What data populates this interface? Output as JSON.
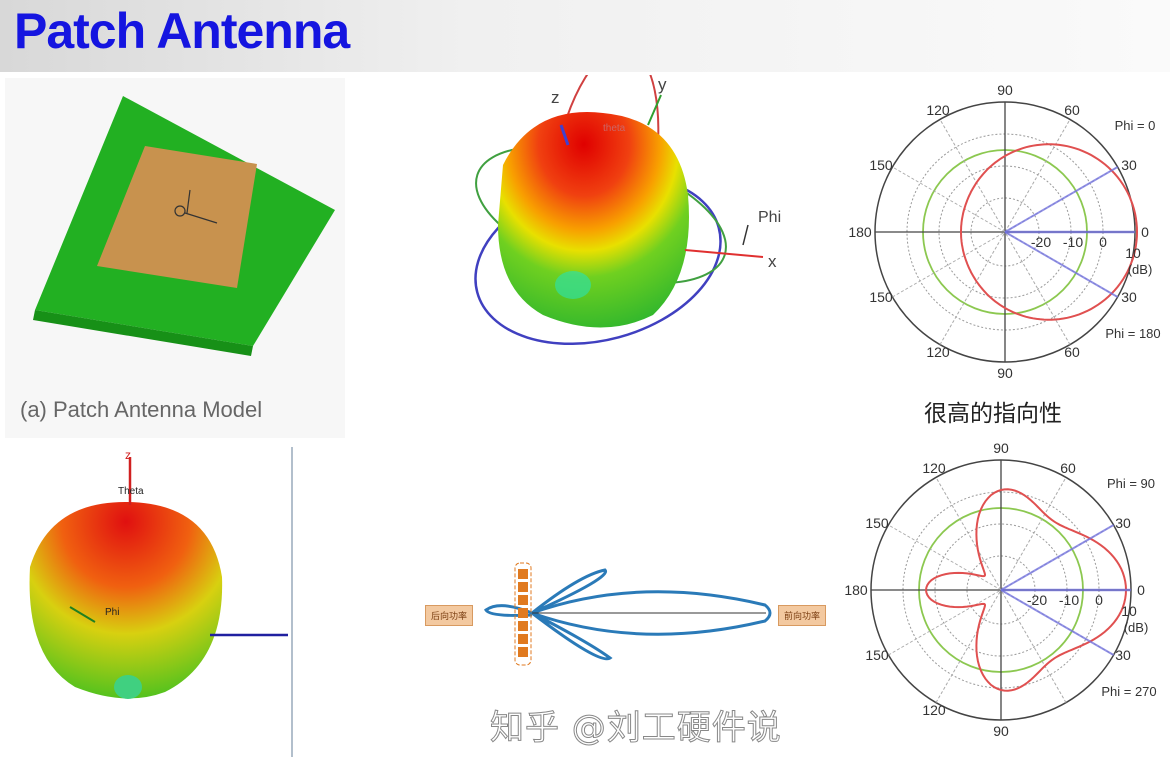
{
  "title": "Patch Antenna",
  "patch_model": {
    "caption": "(a) Patch Antenna Model"
  },
  "pattern_3d_top": {
    "axis_z": "z",
    "axis_y": "y",
    "axis_x": "x",
    "theta_label": "theta",
    "phi_label": "Phi"
  },
  "polar_top": {
    "angle_labels": [
      "90",
      "60",
      "30",
      "0",
      "30",
      "60",
      "90",
      "120",
      "150",
      "180",
      "150",
      "120"
    ],
    "db_labels": [
      "-20",
      "-10",
      "0",
      "10"
    ],
    "unit": "(dB)",
    "phi_start": "Phi = 0",
    "phi_end": "Phi = 180"
  },
  "polar_top_caption": "很高的指向性",
  "pattern_3d_bottom": {
    "axis_z": "z",
    "theta_label": "Theta",
    "phi_label": "Phi"
  },
  "array_diagram": {
    "back_label": "后向功率",
    "front_label": "前向功率"
  },
  "polar_bottom": {
    "angle_labels": [
      "90",
      "60",
      "30",
      "0",
      "30",
      "90",
      "120",
      "150",
      "180",
      "150",
      "120"
    ],
    "db_labels": [
      "-20",
      "-10",
      "0",
      "10"
    ],
    "unit": "(dB)",
    "phi_start": "Phi = 90",
    "phi_end": "Phi = 270"
  },
  "watermark": "知乎 @刘工硬件说",
  "colors": {
    "title": "#1515e0",
    "pattern": "#e04848",
    "reference": "#88c040",
    "beam": "#6a6ad8",
    "array_lobe": "#2a7ab8"
  }
}
